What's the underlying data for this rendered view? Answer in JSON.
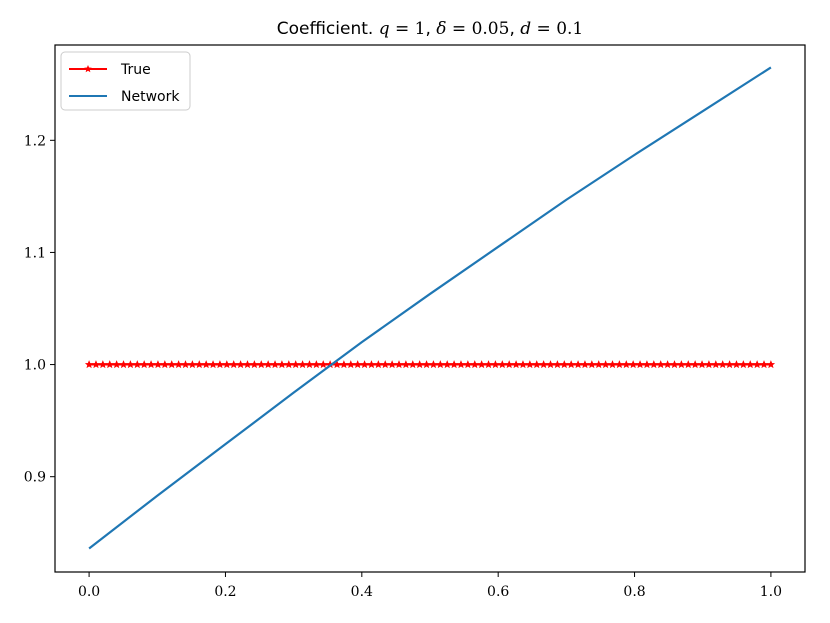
{
  "chart_data": {
    "type": "line",
    "title": {
      "prefix": "Coefficient. ",
      "q_sym": "q",
      "q_eq": " = 1",
      "sep1": ", ",
      "delta_sym": "δ",
      "delta_eq": " = 0.05",
      "sep2": ", ",
      "d_sym": "d",
      "d_eq": " = 0.1"
    },
    "xlabel": "",
    "ylabel": "",
    "xlim": [
      -0.05,
      1.05
    ],
    "ylim": [
      0.815,
      1.285
    ],
    "xticks": [
      0.0,
      0.2,
      0.4,
      0.6,
      0.8,
      1.0
    ],
    "xtick_labels": [
      "0.0",
      "0.2",
      "0.4",
      "0.6",
      "0.8",
      "1.0"
    ],
    "yticks": [
      0.9,
      1.0,
      1.1,
      1.2
    ],
    "ytick_labels": [
      "0.9",
      "1.0",
      "1.1",
      "1.2"
    ],
    "legend_position": "upper-left",
    "grid": false,
    "series": [
      {
        "name": "True",
        "color": "#ff0000",
        "marker": "star",
        "n_points": 100,
        "x_start": 0.0,
        "x_end": 1.0,
        "value": 1.0
      },
      {
        "name": "Network",
        "color": "#1f77b4",
        "marker": "none",
        "x": [
          0.0,
          0.1,
          0.2,
          0.3,
          0.4,
          0.5,
          0.6,
          0.7,
          0.8,
          0.9,
          1.0
        ],
        "y": [
          0.836,
          0.883,
          0.929,
          0.975,
          1.02,
          1.063,
          1.105,
          1.147,
          1.187,
          1.226,
          1.265
        ]
      }
    ]
  }
}
